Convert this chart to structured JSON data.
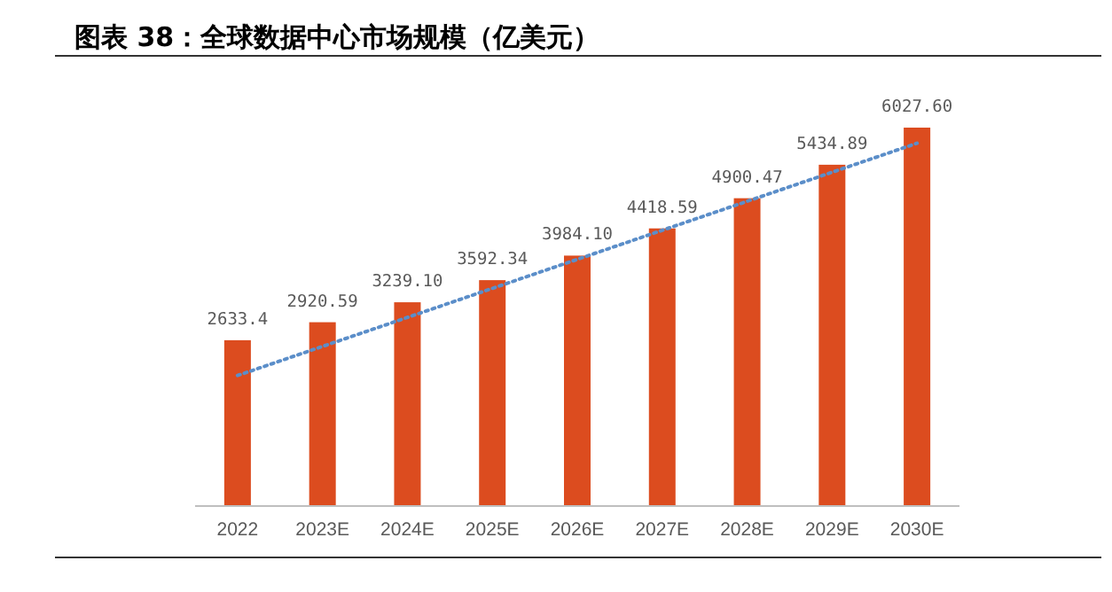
{
  "chart_data": {
    "type": "bar",
    "title": "图表 38：全球数据中心市场规模（亿美元）",
    "categories": [
      "2022",
      "2023E",
      "2024E",
      "2025E",
      "2026E",
      "2027E",
      "2028E",
      "2029E",
      "2030E"
    ],
    "series": [
      {
        "color": "#dc4c1f",
        "values": [
          2633.4,
          2920.59,
          3239.1,
          3592.34,
          3984.1,
          4418.59,
          4900.47,
          5434.89,
          6027.6
        ],
        "value_labels": [
          "2633.4",
          "2920.59",
          "3239.10",
          "3592.34",
          "3984.10",
          "4418.59",
          "4900.47",
          "5434.89",
          "6027.60"
        ]
      },
      {
        "type": "line",
        "color": "#5b8ec9",
        "line_style": "dotted",
        "marker": "none",
        "values": [
          2070,
          2534,
          2997,
          3461,
          3924,
          4388,
          4851,
          5315,
          5778
        ]
      }
    ]
  }
}
